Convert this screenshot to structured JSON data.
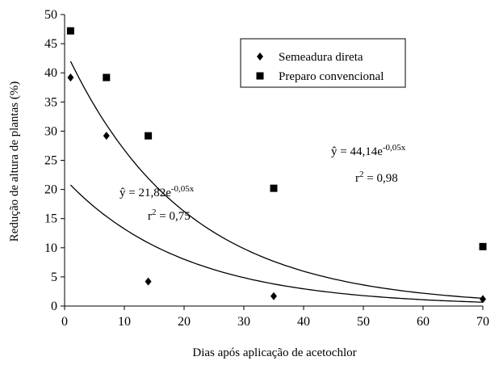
{
  "chart_data": {
    "type": "scatter",
    "xlabel": "Dias após aplicação de acetochlor",
    "ylabel": "Redução de altura de plantas (%)",
    "xlim": [
      0,
      70
    ],
    "xticks": [
      0,
      10,
      20,
      30,
      40,
      50,
      60,
      70
    ],
    "ylim": [
      0,
      50
    ],
    "yticks": [
      0,
      5,
      10,
      15,
      20,
      25,
      30,
      35,
      40,
      45,
      50
    ],
    "legend": "top-right",
    "series": [
      {
        "name": "Semeadura direta",
        "marker": "diamond",
        "color": "#000000",
        "x": [
          1,
          7,
          14,
          35,
          70
        ],
        "values": [
          39.2,
          29.2,
          4.2,
          1.7,
          1.2
        ]
      },
      {
        "name": "Preparo convencional",
        "marker": "square",
        "color": "#000000",
        "x": [
          1,
          7,
          14,
          35,
          70
        ],
        "values": [
          47.2,
          39.2,
          29.2,
          20.2,
          10.2
        ]
      }
    ],
    "fits": [
      {
        "a": 21.82,
        "k": -0.05,
        "label": "ŷ = 21,82e",
        "exponent": "-0,05x",
        "r": "r",
        "r_sup": "2",
        "r_value": " = 0,75",
        "r2": 0.75
      },
      {
        "a": 44.14,
        "k": -0.05,
        "label": "ŷ = 44,14e",
        "exponent": "-0,05x",
        "r": "r",
        "r_sup": "2",
        "r_value": " = 0,98",
        "r2": 0.98
      }
    ]
  }
}
